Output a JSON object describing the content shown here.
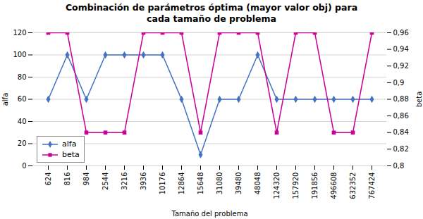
{
  "chart_data": {
    "type": "line",
    "title": "Combinación de parámetros óptima (mayor valor obj) para\ncada tamaño de problema",
    "xlabel": "Tamaño del problema",
    "ylabel": "alfa",
    "y2label": "beta",
    "categories": [
      "624",
      "816",
      "984",
      "2544",
      "3216",
      "3936",
      "10176",
      "12864",
      "15648",
      "31080",
      "39480",
      "48048",
      "124320",
      "157920",
      "191856",
      "496608",
      "632352",
      "767424"
    ],
    "series": [
      {
        "name": "alfa",
        "color": "#4472C4",
        "marker": "diamond",
        "values": [
          60,
          100,
          60,
          100,
          100,
          100,
          100,
          60,
          10,
          60,
          60,
          100,
          60,
          60,
          60,
          60,
          60,
          60
        ]
      },
      {
        "name": "beta",
        "color": "#CC0099",
        "marker": "square",
        "axis": "y2",
        "values": [
          0.96,
          0.96,
          0.84,
          0.84,
          0.84,
          0.96,
          0.96,
          0.96,
          0.84,
          0.96,
          0.96,
          0.96,
          0.84,
          0.96,
          0.96,
          0.84,
          0.84,
          0.96
        ]
      }
    ],
    "ylim": [
      0,
      120
    ],
    "yticks": [
      0,
      20,
      40,
      60,
      80,
      100,
      120
    ],
    "y2lim": [
      0.8,
      0.96
    ],
    "y2ticks": [
      {
        "value": 0.8,
        "label": "0,8"
      },
      {
        "value": 0.82,
        "label": "0,82"
      },
      {
        "value": 0.84,
        "label": "0,84"
      },
      {
        "value": 0.86,
        "label": "0,86"
      },
      {
        "value": 0.88,
        "label": "0,88"
      },
      {
        "value": 0.9,
        "label": "0,9"
      },
      {
        "value": 0.92,
        "label": "0,92"
      },
      {
        "value": 0.94,
        "label": "0,94"
      },
      {
        "value": 0.96,
        "label": "0,96"
      }
    ],
    "grid": true,
    "legend": "lower left"
  }
}
